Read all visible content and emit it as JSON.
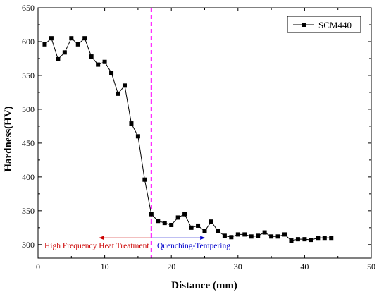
{
  "chart_data": {
    "type": "line",
    "xlabel": "Distance (mm)",
    "ylabel": "Hardness(HV)",
    "xlim": [
      0,
      50
    ],
    "ylim": [
      280,
      650
    ],
    "x_ticks": [
      0,
      10,
      20,
      30,
      40,
      50
    ],
    "y_ticks": [
      300,
      350,
      400,
      450,
      500,
      550,
      600,
      650
    ],
    "x_tick_labels": [
      "0",
      "10",
      "20",
      "30",
      "40",
      "50"
    ],
    "y_tick_labels": [
      "300",
      "350",
      "400",
      "450",
      "500",
      "550",
      "600",
      "650"
    ],
    "grid": false,
    "legend_position": "top-right",
    "series": [
      {
        "name": "SCM440",
        "marker": "square",
        "color": "#000000",
        "x": [
          1,
          2,
          3,
          4,
          5,
          6,
          7,
          8,
          9,
          10,
          11,
          12,
          13,
          14,
          15,
          16,
          17,
          18,
          19,
          20,
          21,
          22,
          23,
          24,
          25,
          26,
          27,
          28,
          29,
          30,
          31,
          32,
          33,
          34,
          35,
          36,
          37,
          38,
          39,
          40,
          41,
          42,
          43,
          44
        ],
        "y": [
          596,
          605,
          574,
          584,
          605,
          596,
          605,
          578,
          566,
          570,
          554,
          523,
          535,
          479,
          460,
          396,
          345,
          335,
          332,
          329,
          340,
          345,
          325,
          328,
          320,
          334,
          320,
          313,
          311,
          315,
          315,
          312,
          313,
          318,
          312,
          312,
          315,
          306,
          308,
          308,
          307,
          310,
          310,
          310
        ]
      }
    ],
    "annotations": {
      "vline_x": 17,
      "vline_color": "#ff00ff",
      "left_label": "High Frequency Heat Treatment",
      "left_color": "#cc0000",
      "right_label": "Quenching-Tempering",
      "right_color": "#0000cc",
      "arrow_y": 310
    }
  }
}
